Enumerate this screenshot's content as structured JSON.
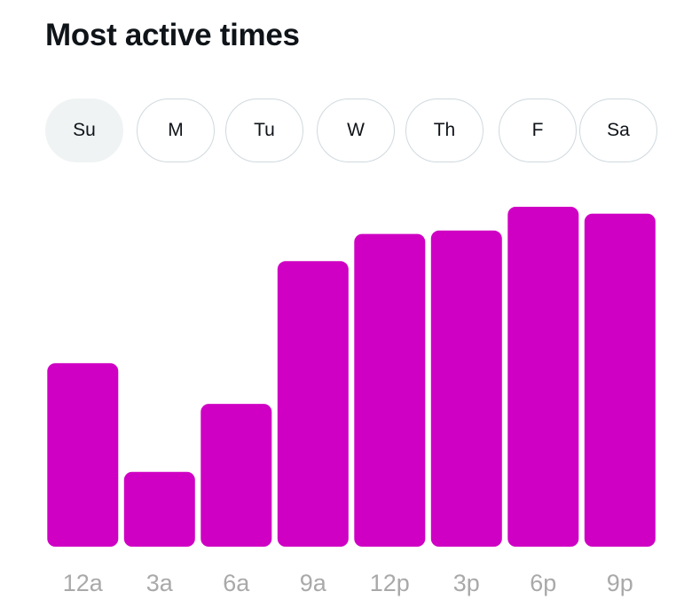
{
  "header": {
    "title": "Most active times"
  },
  "days": [
    {
      "label": "Su",
      "selected": true
    },
    {
      "label": "M",
      "selected": false
    },
    {
      "label": "Tu",
      "selected": false
    },
    {
      "label": "W",
      "selected": false
    },
    {
      "label": "Th",
      "selected": false
    },
    {
      "label": "F",
      "selected": false
    },
    {
      "label": "Sa",
      "selected": false
    }
  ],
  "colors": {
    "bar": "#cf00c3",
    "tick_label": "#a9a9a9",
    "selected_tab_bg": "#eff3f4",
    "tab_border": "#cfd9de"
  },
  "chart_data": {
    "type": "bar",
    "categories": [
      "12a",
      "3a",
      "6a",
      "9a",
      "12p",
      "3p",
      "6p",
      "9p"
    ],
    "values": [
      54,
      22,
      42,
      84,
      92,
      93,
      100,
      98
    ],
    "ylim": [
      0,
      100
    ],
    "grid": false
  }
}
